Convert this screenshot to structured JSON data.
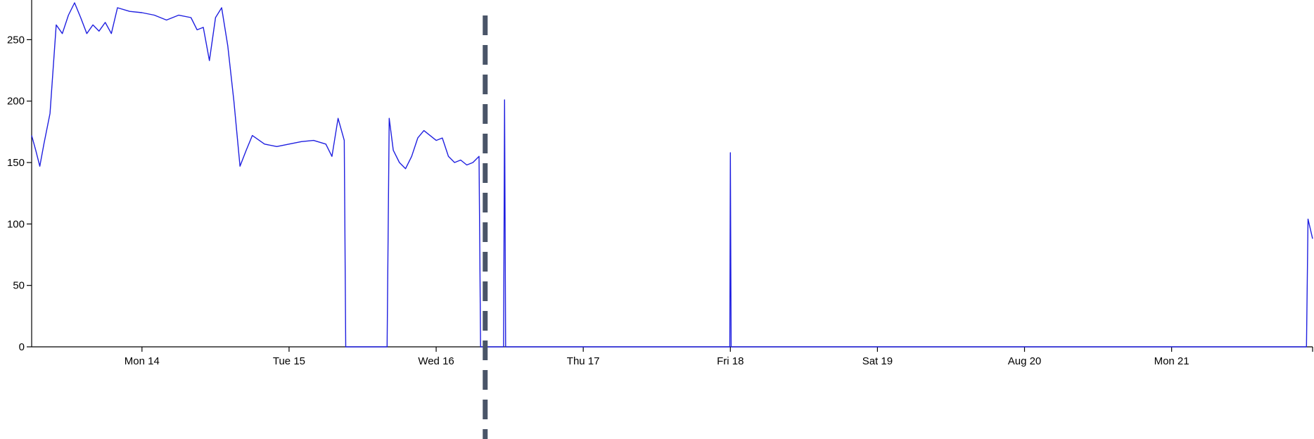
{
  "chart_data": {
    "type": "line",
    "title": "",
    "xlabel": "",
    "ylabel": "",
    "ylim": [
      0,
      280
    ],
    "xlim": [
      "2017-08-13T06:00",
      "2017-08-21T23:00"
    ],
    "grid": false,
    "y_ticks": [
      0,
      50,
      100,
      150,
      200,
      250
    ],
    "x_ticks": [
      {
        "label": "Mon 14",
        "at": "2017-08-14T00:00"
      },
      {
        "label": "Tue 15",
        "at": "2017-08-15T00:00"
      },
      {
        "label": "Wed 16",
        "at": "2017-08-16T00:00"
      },
      {
        "label": "Thu 17",
        "at": "2017-08-17T00:00"
      },
      {
        "label": "Fri 18",
        "at": "2017-08-18T00:00"
      },
      {
        "label": "Sat 19",
        "at": "2017-08-19T00:00"
      },
      {
        "label": "Aug 20",
        "at": "2017-08-20T00:00"
      },
      {
        "label": "Mon 21",
        "at": "2017-08-21T00:00"
      }
    ],
    "series": [
      {
        "color": "#1f1fe0",
        "points": [
          [
            "2017-08-13T06:00",
            172
          ],
          [
            "2017-08-13T06:40",
            160
          ],
          [
            "2017-08-13T07:20",
            147
          ],
          [
            "2017-08-13T08:00",
            165
          ],
          [
            "2017-08-13T09:00",
            190
          ],
          [
            "2017-08-13T10:00",
            262
          ],
          [
            "2017-08-13T11:00",
            255
          ],
          [
            "2017-08-13T12:00",
            270
          ],
          [
            "2017-08-13T13:00",
            280
          ],
          [
            "2017-08-13T14:00",
            268
          ],
          [
            "2017-08-13T15:00",
            255
          ],
          [
            "2017-08-13T16:00",
            262
          ],
          [
            "2017-08-13T17:00",
            257
          ],
          [
            "2017-08-13T18:00",
            264
          ],
          [
            "2017-08-13T19:00",
            255
          ],
          [
            "2017-08-13T20:00",
            276
          ],
          [
            "2017-08-13T22:00",
            273
          ],
          [
            "2017-08-14T00:00",
            272
          ],
          [
            "2017-08-14T02:00",
            270
          ],
          [
            "2017-08-14T04:00",
            266
          ],
          [
            "2017-08-14T06:00",
            270
          ],
          [
            "2017-08-14T08:00",
            268
          ],
          [
            "2017-08-14T09:00",
            258
          ],
          [
            "2017-08-14T10:00",
            260
          ],
          [
            "2017-08-14T11:00",
            233
          ],
          [
            "2017-08-14T12:00",
            268
          ],
          [
            "2017-08-14T13:00",
            276
          ],
          [
            "2017-08-14T14:00",
            245
          ],
          [
            "2017-08-14T15:00",
            200
          ],
          [
            "2017-08-14T16:00",
            147
          ],
          [
            "2017-08-14T17:00",
            160
          ],
          [
            "2017-08-14T18:00",
            172
          ],
          [
            "2017-08-14T20:00",
            165
          ],
          [
            "2017-08-14T22:00",
            163
          ],
          [
            "2017-08-15T00:00",
            165
          ],
          [
            "2017-08-15T02:00",
            167
          ],
          [
            "2017-08-15T04:00",
            168
          ],
          [
            "2017-08-15T06:00",
            165
          ],
          [
            "2017-08-15T07:00",
            155
          ],
          [
            "2017-08-15T08:00",
            186
          ],
          [
            "2017-08-15T09:00",
            168
          ],
          [
            "2017-08-15T09:15",
            0
          ],
          [
            "2017-08-15T16:00",
            0
          ],
          [
            "2017-08-15T16:20",
            186
          ],
          [
            "2017-08-15T17:00",
            160
          ],
          [
            "2017-08-15T18:00",
            150
          ],
          [
            "2017-08-15T19:00",
            145
          ],
          [
            "2017-08-15T20:00",
            155
          ],
          [
            "2017-08-15T21:00",
            170
          ],
          [
            "2017-08-15T22:00",
            176
          ],
          [
            "2017-08-16T00:00",
            168
          ],
          [
            "2017-08-16T01:00",
            170
          ],
          [
            "2017-08-16T02:00",
            155
          ],
          [
            "2017-08-16T03:00",
            150
          ],
          [
            "2017-08-16T04:00",
            152
          ],
          [
            "2017-08-16T05:00",
            148
          ],
          [
            "2017-08-16T06:00",
            150
          ],
          [
            "2017-08-16T07:00",
            155
          ],
          [
            "2017-08-16T07:15",
            0
          ],
          [
            "2017-08-16T11:00",
            0
          ],
          [
            "2017-08-16T11:10",
            201
          ],
          [
            "2017-08-16T11:20",
            0
          ],
          [
            "2017-08-17T23:55",
            0
          ],
          [
            "2017-08-18T00:00",
            158
          ],
          [
            "2017-08-18T00:08",
            0
          ],
          [
            "2017-08-21T22:00",
            0
          ],
          [
            "2017-08-21T22:15",
            104
          ],
          [
            "2017-08-21T23:00",
            88
          ]
        ]
      }
    ],
    "marker": {
      "at": "2017-08-16T08:00",
      "style": "dashed",
      "color": "#4a5568"
    }
  }
}
